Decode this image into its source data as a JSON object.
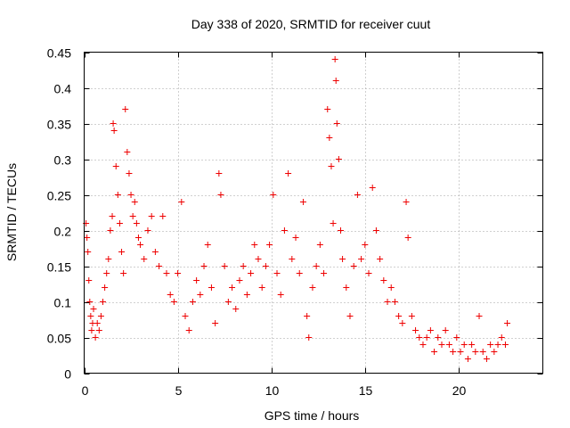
{
  "chart_data": {
    "type": "scatter",
    "title": "Day 338 of 2020, SRMTID for receiver cuut",
    "xlabel": "GPS time / hours",
    "ylabel": "SRMTID / TECUs",
    "xlim": [
      0,
      24.5
    ],
    "ylim": [
      0,
      0.45
    ],
    "xticks": [
      0,
      5,
      10,
      15,
      20
    ],
    "xtick_labels": [
      "0",
      "5",
      "10",
      "15",
      "20"
    ],
    "yticks": [
      0,
      0.05,
      0.1,
      0.15,
      0.2,
      0.25,
      0.3,
      0.35,
      0.4,
      0.45
    ],
    "ytick_labels": [
      "0",
      "0.05",
      "0.1",
      "0.15",
      "0.2",
      "0.25",
      "0.3",
      "0.35",
      "0.4",
      "0.45"
    ],
    "grid": true,
    "marker": "+",
    "color": "#ee0000",
    "series": [
      {
        "name": "SRMTID",
        "points": [
          [
            0.1,
            0.21
          ],
          [
            0.15,
            0.19
          ],
          [
            0.2,
            0.17
          ],
          [
            0.25,
            0.13
          ],
          [
            0.3,
            0.1
          ],
          [
            0.35,
            0.08
          ],
          [
            0.4,
            0.06
          ],
          [
            0.45,
            0.07
          ],
          [
            0.5,
            0.09
          ],
          [
            0.6,
            0.05
          ],
          [
            0.7,
            0.07
          ],
          [
            0.8,
            0.06
          ],
          [
            0.9,
            0.08
          ],
          [
            1.0,
            0.1
          ],
          [
            1.1,
            0.12
          ],
          [
            1.2,
            0.14
          ],
          [
            1.3,
            0.16
          ],
          [
            1.4,
            0.2
          ],
          [
            1.5,
            0.22
          ],
          [
            1.55,
            0.35
          ],
          [
            1.6,
            0.34
          ],
          [
            1.7,
            0.29
          ],
          [
            1.8,
            0.25
          ],
          [
            1.9,
            0.21
          ],
          [
            2.0,
            0.17
          ],
          [
            2.1,
            0.14
          ],
          [
            2.2,
            0.37
          ],
          [
            2.3,
            0.31
          ],
          [
            2.4,
            0.28
          ],
          [
            2.5,
            0.25
          ],
          [
            2.6,
            0.22
          ],
          [
            2.7,
            0.24
          ],
          [
            2.8,
            0.21
          ],
          [
            2.9,
            0.19
          ],
          [
            3.0,
            0.18
          ],
          [
            3.2,
            0.16
          ],
          [
            3.4,
            0.2
          ],
          [
            3.6,
            0.22
          ],
          [
            3.8,
            0.17
          ],
          [
            4.0,
            0.15
          ],
          [
            4.2,
            0.22
          ],
          [
            4.4,
            0.14
          ],
          [
            4.6,
            0.11
          ],
          [
            4.8,
            0.1
          ],
          [
            5.0,
            0.14
          ],
          [
            5.2,
            0.24
          ],
          [
            5.4,
            0.08
          ],
          [
            5.6,
            0.06
          ],
          [
            5.8,
            0.1
          ],
          [
            6.0,
            0.13
          ],
          [
            6.2,
            0.11
          ],
          [
            6.4,
            0.15
          ],
          [
            6.6,
            0.18
          ],
          [
            6.8,
            0.12
          ],
          [
            7.0,
            0.07
          ],
          [
            7.2,
            0.28
          ],
          [
            7.3,
            0.25
          ],
          [
            7.5,
            0.15
          ],
          [
            7.7,
            0.1
          ],
          [
            7.9,
            0.12
          ],
          [
            8.1,
            0.09
          ],
          [
            8.3,
            0.13
          ],
          [
            8.5,
            0.15
          ],
          [
            8.7,
            0.11
          ],
          [
            8.9,
            0.14
          ],
          [
            9.1,
            0.18
          ],
          [
            9.3,
            0.16
          ],
          [
            9.5,
            0.12
          ],
          [
            9.7,
            0.15
          ],
          [
            9.9,
            0.18
          ],
          [
            10.1,
            0.25
          ],
          [
            10.3,
            0.14
          ],
          [
            10.5,
            0.11
          ],
          [
            10.7,
            0.2
          ],
          [
            10.9,
            0.28
          ],
          [
            11.1,
            0.16
          ],
          [
            11.3,
            0.19
          ],
          [
            11.5,
            0.14
          ],
          [
            11.7,
            0.24
          ],
          [
            11.9,
            0.08
          ],
          [
            12.0,
            0.05
          ],
          [
            12.2,
            0.12
          ],
          [
            12.4,
            0.15
          ],
          [
            12.6,
            0.18
          ],
          [
            12.8,
            0.14
          ],
          [
            13.0,
            0.37
          ],
          [
            13.1,
            0.33
          ],
          [
            13.2,
            0.29
          ],
          [
            13.3,
            0.21
          ],
          [
            13.4,
            0.44
          ],
          [
            13.45,
            0.41
          ],
          [
            13.5,
            0.35
          ],
          [
            13.6,
            0.3
          ],
          [
            13.7,
            0.2
          ],
          [
            13.8,
            0.16
          ],
          [
            14.0,
            0.12
          ],
          [
            14.2,
            0.08
          ],
          [
            14.4,
            0.15
          ],
          [
            14.6,
            0.25
          ],
          [
            14.8,
            0.16
          ],
          [
            15.0,
            0.18
          ],
          [
            15.2,
            0.14
          ],
          [
            15.4,
            0.26
          ],
          [
            15.6,
            0.2
          ],
          [
            15.8,
            0.16
          ],
          [
            16.0,
            0.13
          ],
          [
            16.2,
            0.1
          ],
          [
            16.4,
            0.12
          ],
          [
            16.6,
            0.1
          ],
          [
            16.8,
            0.08
          ],
          [
            17.0,
            0.07
          ],
          [
            17.2,
            0.24
          ],
          [
            17.3,
            0.19
          ],
          [
            17.5,
            0.08
          ],
          [
            17.7,
            0.06
          ],
          [
            17.9,
            0.05
          ],
          [
            18.1,
            0.04
          ],
          [
            18.3,
            0.05
          ],
          [
            18.5,
            0.06
          ],
          [
            18.7,
            0.03
          ],
          [
            18.9,
            0.05
          ],
          [
            19.1,
            0.04
          ],
          [
            19.3,
            0.06
          ],
          [
            19.5,
            0.04
          ],
          [
            19.7,
            0.03
          ],
          [
            19.9,
            0.05
          ],
          [
            20.1,
            0.03
          ],
          [
            20.3,
            0.04
          ],
          [
            20.5,
            0.02
          ],
          [
            20.7,
            0.04
          ],
          [
            20.9,
            0.03
          ],
          [
            21.1,
            0.08
          ],
          [
            21.3,
            0.03
          ],
          [
            21.5,
            0.02
          ],
          [
            21.7,
            0.04
          ],
          [
            21.9,
            0.03
          ],
          [
            22.1,
            0.04
          ],
          [
            22.3,
            0.05
          ],
          [
            22.5,
            0.04
          ],
          [
            22.6,
            0.07
          ]
        ]
      }
    ]
  }
}
